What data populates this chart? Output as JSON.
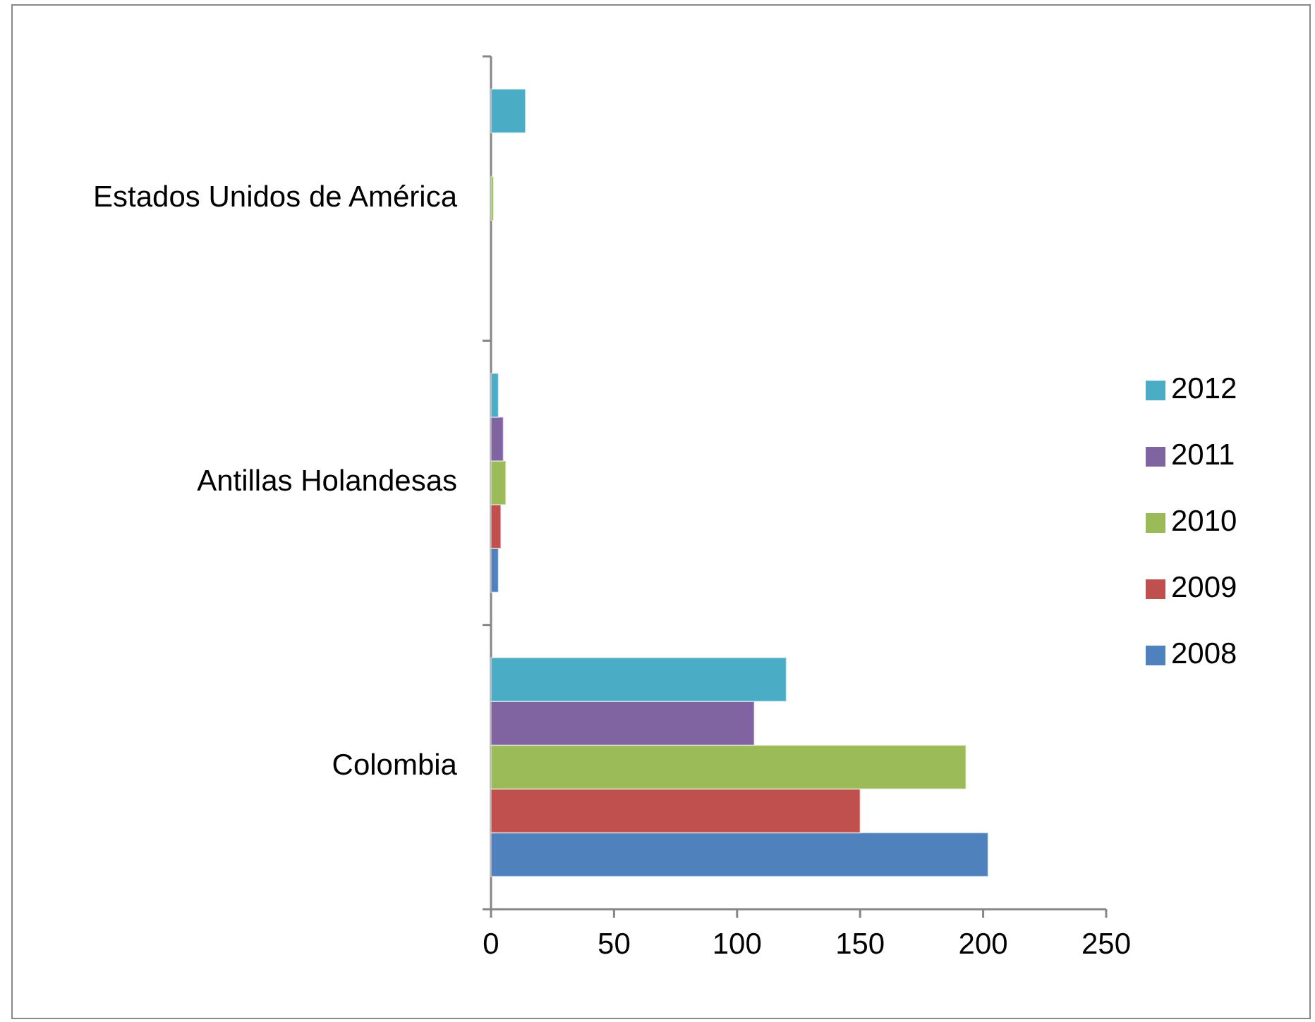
{
  "chart_data": {
    "type": "bar",
    "orientation": "horizontal",
    "categories": [
      "Estados Unidos de América",
      "Antillas Holandesas",
      "Colombia"
    ],
    "series": [
      {
        "name": "2008",
        "color": "#4f81bd",
        "values": [
          0,
          3,
          202
        ]
      },
      {
        "name": "2009",
        "color": "#c0504d",
        "values": [
          0,
          4,
          150
        ]
      },
      {
        "name": "2010",
        "color": "#9bbb59",
        "values": [
          1,
          6,
          193
        ]
      },
      {
        "name": "2011",
        "color": "#8064a2",
        "values": [
          0,
          5,
          107
        ]
      },
      {
        "name": "2012",
        "color": "#4bacc6",
        "values": [
          14,
          3,
          120
        ]
      }
    ],
    "xlim": [
      0,
      250
    ],
    "xticks": [
      0,
      50,
      100,
      150,
      200,
      250
    ],
    "grid": false,
    "legend": "right"
  }
}
